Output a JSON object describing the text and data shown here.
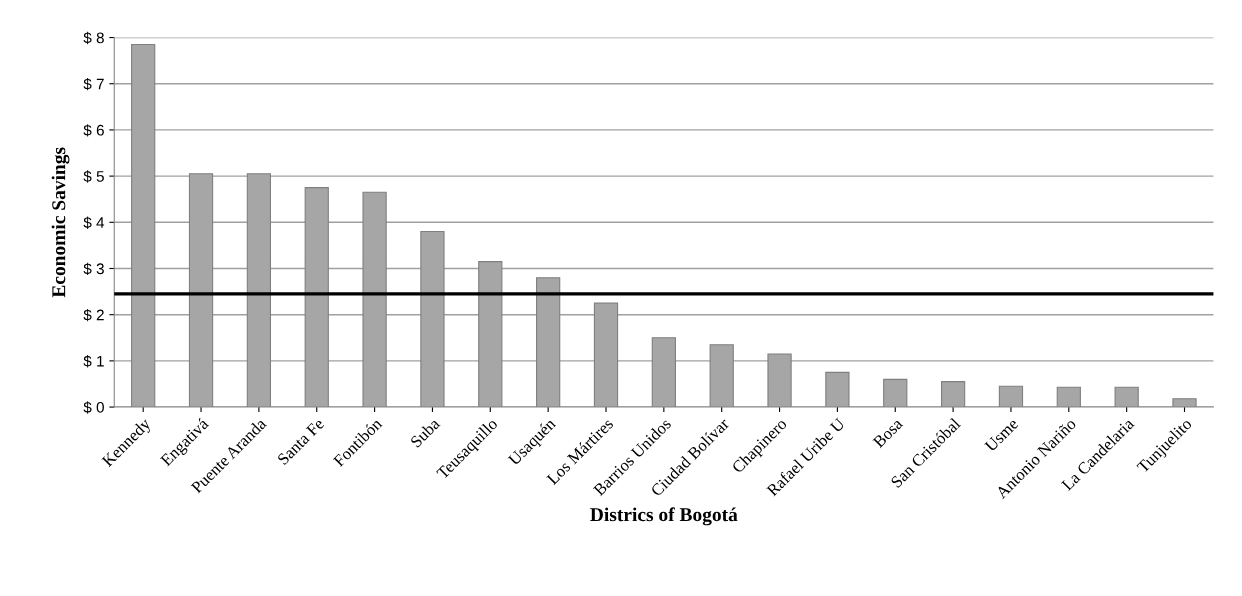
{
  "chart_data": {
    "type": "bar",
    "xlabel": "Districs of Bogotá",
    "ylabel": "Economic Savings",
    "categories": [
      "Kennedy",
      "Engativá",
      "Puente Aranda",
      "Santa Fe",
      "Fontibón",
      "Suba",
      "Teusaquillo",
      "Usaquén",
      "Los Mártires",
      "Barrios Unidos",
      "Ciudad Bolívar",
      "Chapinero",
      "Rafael Uribe U",
      "Bosa",
      "San Cristóbal",
      "Usme",
      "Antonio Nariño",
      "La Candelaria",
      "Tunjuelito"
    ],
    "values": [
      7.85,
      5.05,
      5.05,
      4.75,
      4.65,
      3.8,
      3.15,
      2.8,
      2.25,
      1.5,
      1.35,
      1.15,
      0.75,
      0.6,
      0.55,
      0.45,
      0.43,
      0.43,
      0.18
    ],
    "color": "#a6a6a6",
    "ylim": [
      0,
      8
    ],
    "yticks": [
      {
        "value": 0,
        "label": "$ 0"
      },
      {
        "value": 1,
        "label": "$ 1"
      },
      {
        "value": 2,
        "label": "$ 2"
      },
      {
        "value": 3,
        "label": "$ 3"
      },
      {
        "value": 4,
        "label": "$ 4"
      },
      {
        "value": 5,
        "label": "$ 5"
      },
      {
        "value": 6,
        "label": "$ 6"
      },
      {
        "value": 7,
        "label": "$ 7"
      },
      {
        "value": 8,
        "label": "$ 8"
      }
    ],
    "grid": "y",
    "ref_lines": [
      {
        "axis": "y",
        "value": 2.45,
        "color": "#000000",
        "line_style": "solid"
      }
    ]
  }
}
